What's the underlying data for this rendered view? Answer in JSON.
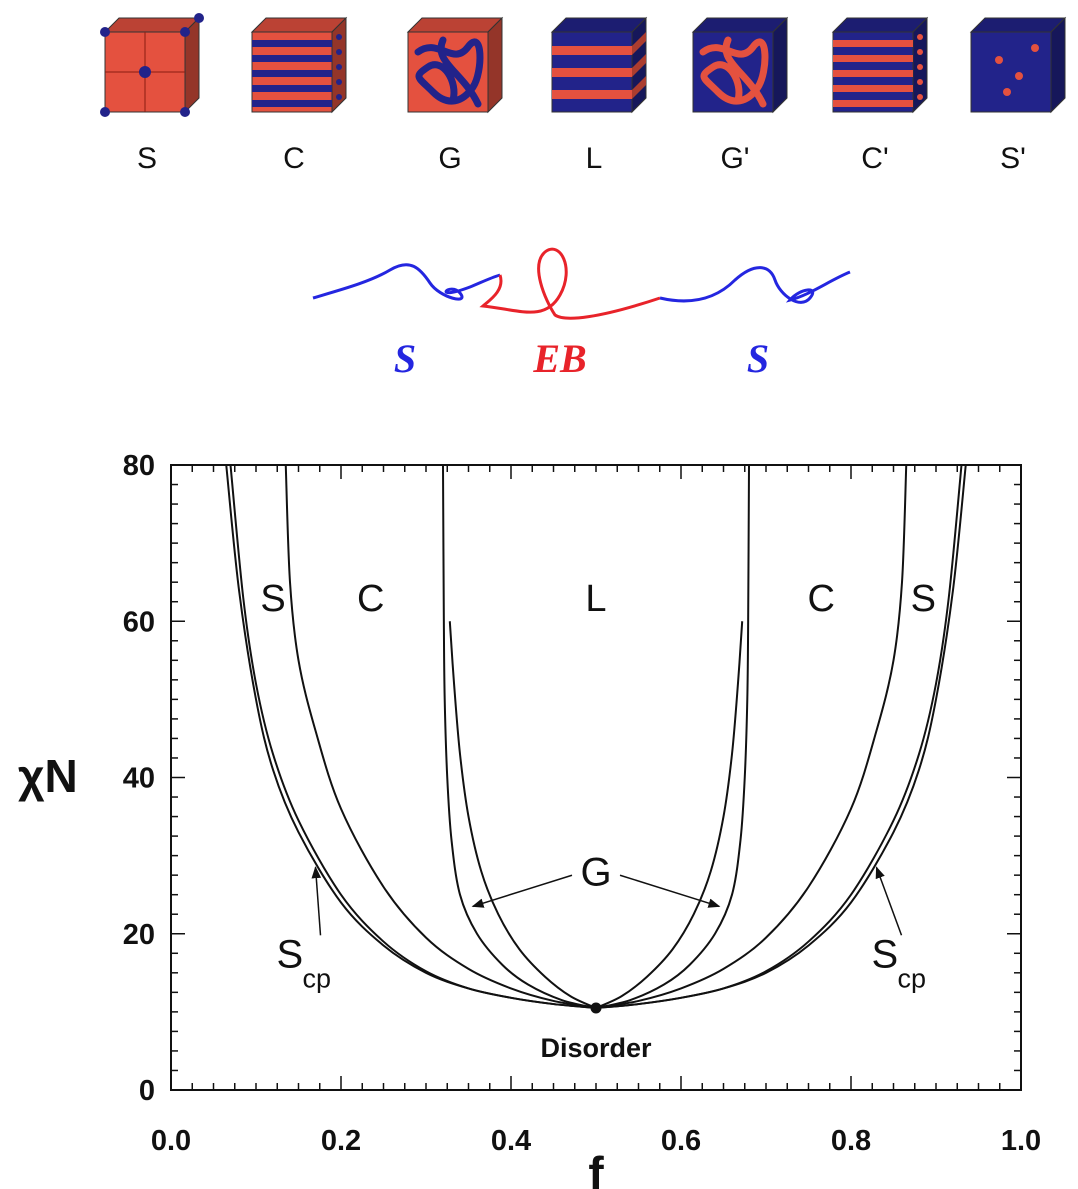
{
  "morphologies": [
    {
      "label": "S",
      "pattern": "spheres",
      "base": "#e4513f",
      "minor": "#22238a"
    },
    {
      "label": "C",
      "pattern": "cylinders",
      "base": "#e4513f",
      "minor": "#22238a"
    },
    {
      "label": "G",
      "pattern": "gyroid",
      "base": "#e4513f",
      "minor": "#22238a"
    },
    {
      "label": "L",
      "pattern": "lamellae",
      "base": "#22238a",
      "minor": "#e4513f"
    },
    {
      "label": "G'",
      "pattern": "gyroid",
      "base": "#22238a",
      "minor": "#e4513f"
    },
    {
      "label": "C'",
      "pattern": "cylinders",
      "base": "#22238a",
      "minor": "#e4513f"
    },
    {
      "label": "S'",
      "pattern": "spheres",
      "base": "#22238a",
      "minor": "#e4513f"
    }
  ],
  "copolymer": {
    "blocks": [
      {
        "label": "S",
        "color": "#2426e0"
      },
      {
        "label": "EB",
        "color": "#e8232a"
      },
      {
        "label": "S",
        "color": "#2426e0"
      }
    ]
  },
  "chart_data": {
    "type": "line",
    "title": "",
    "xlabel": "f",
    "ylabel": "χN",
    "xlim": [
      0.0,
      1.0
    ],
    "ylim": [
      0,
      80
    ],
    "xticks": [
      "0.0",
      "0.2",
      "0.4",
      "0.6",
      "0.8",
      "1.0"
    ],
    "yticks": [
      "0",
      "20",
      "40",
      "60",
      "80"
    ],
    "critical_point": {
      "x": 0.5,
      "y": 10.5
    },
    "series": [
      {
        "values": [
          [
            0.5,
            10.5
          ],
          [
            0.45,
            11.0
          ],
          [
            0.4,
            11.8
          ],
          [
            0.35,
            13.0
          ],
          [
            0.3,
            15.0
          ],
          [
            0.25,
            18.5
          ],
          [
            0.2,
            24.0
          ],
          [
            0.15,
            33.0
          ],
          [
            0.12,
            41.0
          ],
          [
            0.1,
            50.0
          ],
          [
            0.08,
            64.0
          ],
          [
            0.065,
            80.0
          ]
        ]
      },
      {
        "values": [
          [
            0.5,
            10.5
          ],
          [
            0.45,
            11.0
          ],
          [
            0.4,
            11.8
          ],
          [
            0.35,
            13.0
          ],
          [
            0.3,
            15.2
          ],
          [
            0.25,
            19.0
          ],
          [
            0.2,
            25.0
          ],
          [
            0.15,
            34.5
          ],
          [
            0.12,
            43.0
          ],
          [
            0.1,
            52.0
          ],
          [
            0.085,
            63.0
          ],
          [
            0.07,
            80.0
          ]
        ]
      },
      {
        "values": [
          [
            0.5,
            10.5
          ],
          [
            0.45,
            11.4
          ],
          [
            0.4,
            13.0
          ],
          [
            0.35,
            15.5
          ],
          [
            0.3,
            19.5
          ],
          [
            0.25,
            26.0
          ],
          [
            0.2,
            36.0
          ],
          [
            0.17,
            46.0
          ],
          [
            0.15,
            55.0
          ],
          [
            0.14,
            65.0
          ],
          [
            0.135,
            80.0
          ]
        ]
      },
      {
        "values": [
          [
            0.5,
            10.5
          ],
          [
            0.46,
            11.5
          ],
          [
            0.42,
            13.5
          ],
          [
            0.39,
            16.0
          ],
          [
            0.36,
            20.0
          ],
          [
            0.34,
            25.0
          ],
          [
            0.33,
            32.0
          ],
          [
            0.325,
            40.0
          ],
          [
            0.322,
            50.0
          ],
          [
            0.321,
            60.0
          ],
          [
            0.32,
            80.0
          ]
        ]
      },
      {
        "values": [
          [
            0.5,
            10.5
          ],
          [
            0.47,
            12.0
          ],
          [
            0.44,
            14.5
          ],
          [
            0.41,
            18.0
          ],
          [
            0.385,
            22.5
          ],
          [
            0.365,
            28.0
          ],
          [
            0.35,
            35.0
          ],
          [
            0.34,
            43.0
          ],
          [
            0.333,
            52.0
          ],
          [
            0.328,
            60.0
          ]
        ]
      },
      {
        "values": [
          [
            0.5,
            10.5
          ],
          [
            0.55,
            11.0
          ],
          [
            0.6,
            11.8
          ],
          [
            0.65,
            13.0
          ],
          [
            0.7,
            15.0
          ],
          [
            0.75,
            18.5
          ],
          [
            0.8,
            24.0
          ],
          [
            0.85,
            33.0
          ],
          [
            0.88,
            41.0
          ],
          [
            0.9,
            50.0
          ],
          [
            0.92,
            64.0
          ],
          [
            0.935,
            80.0
          ]
        ]
      },
      {
        "values": [
          [
            0.5,
            10.5
          ],
          [
            0.55,
            11.0
          ],
          [
            0.6,
            11.8
          ],
          [
            0.65,
            13.0
          ],
          [
            0.7,
            15.2
          ],
          [
            0.75,
            19.0
          ],
          [
            0.8,
            25.0
          ],
          [
            0.85,
            34.5
          ],
          [
            0.88,
            43.0
          ],
          [
            0.9,
            52.0
          ],
          [
            0.915,
            63.0
          ],
          [
            0.93,
            80.0
          ]
        ]
      },
      {
        "values": [
          [
            0.5,
            10.5
          ],
          [
            0.55,
            11.4
          ],
          [
            0.6,
            13.0
          ],
          [
            0.65,
            15.5
          ],
          [
            0.7,
            19.5
          ],
          [
            0.75,
            26.0
          ],
          [
            0.8,
            36.0
          ],
          [
            0.83,
            46.0
          ],
          [
            0.85,
            55.0
          ],
          [
            0.86,
            65.0
          ],
          [
            0.865,
            80.0
          ]
        ]
      },
      {
        "values": [
          [
            0.5,
            10.5
          ],
          [
            0.54,
            11.5
          ],
          [
            0.58,
            13.5
          ],
          [
            0.61,
            16.0
          ],
          [
            0.64,
            20.0
          ],
          [
            0.66,
            25.0
          ],
          [
            0.67,
            32.0
          ],
          [
            0.675,
            40.0
          ],
          [
            0.678,
            50.0
          ],
          [
            0.679,
            60.0
          ],
          [
            0.68,
            80.0
          ]
        ]
      },
      {
        "values": [
          [
            0.5,
            10.5
          ],
          [
            0.53,
            12.0
          ],
          [
            0.56,
            14.5
          ],
          [
            0.59,
            18.0
          ],
          [
            0.615,
            22.5
          ],
          [
            0.635,
            28.0
          ],
          [
            0.65,
            35.0
          ],
          [
            0.66,
            43.0
          ],
          [
            0.667,
            52.0
          ],
          [
            0.672,
            60.0
          ]
        ]
      }
    ],
    "region_labels": [
      {
        "text": "S",
        "x": 0.12,
        "y": 63
      },
      {
        "text": "C",
        "x": 0.235,
        "y": 63
      },
      {
        "text": "L",
        "x": 0.5,
        "y": 63
      },
      {
        "text": "C",
        "x": 0.765,
        "y": 63
      },
      {
        "text": "S",
        "x": 0.885,
        "y": 63
      }
    ],
    "annotations": [
      {
        "text": "G",
        "sub": "",
        "x": 0.5,
        "y": 28,
        "arrows": [
          [
            0.355,
            23.5
          ],
          [
            0.645,
            23.5
          ]
        ]
      },
      {
        "text": "S",
        "sub": "cp",
        "x": 0.15,
        "y": 17.5,
        "arrows": [
          [
            0.17,
            28.5
          ]
        ]
      },
      {
        "text": "S",
        "sub": "cp",
        "x": 0.85,
        "y": 17.5,
        "arrows": [
          [
            0.83,
            28.5
          ]
        ]
      },
      {
        "text": "Disorder",
        "sub": "",
        "x": 0.5,
        "y": 5.5,
        "arrows": []
      }
    ]
  }
}
